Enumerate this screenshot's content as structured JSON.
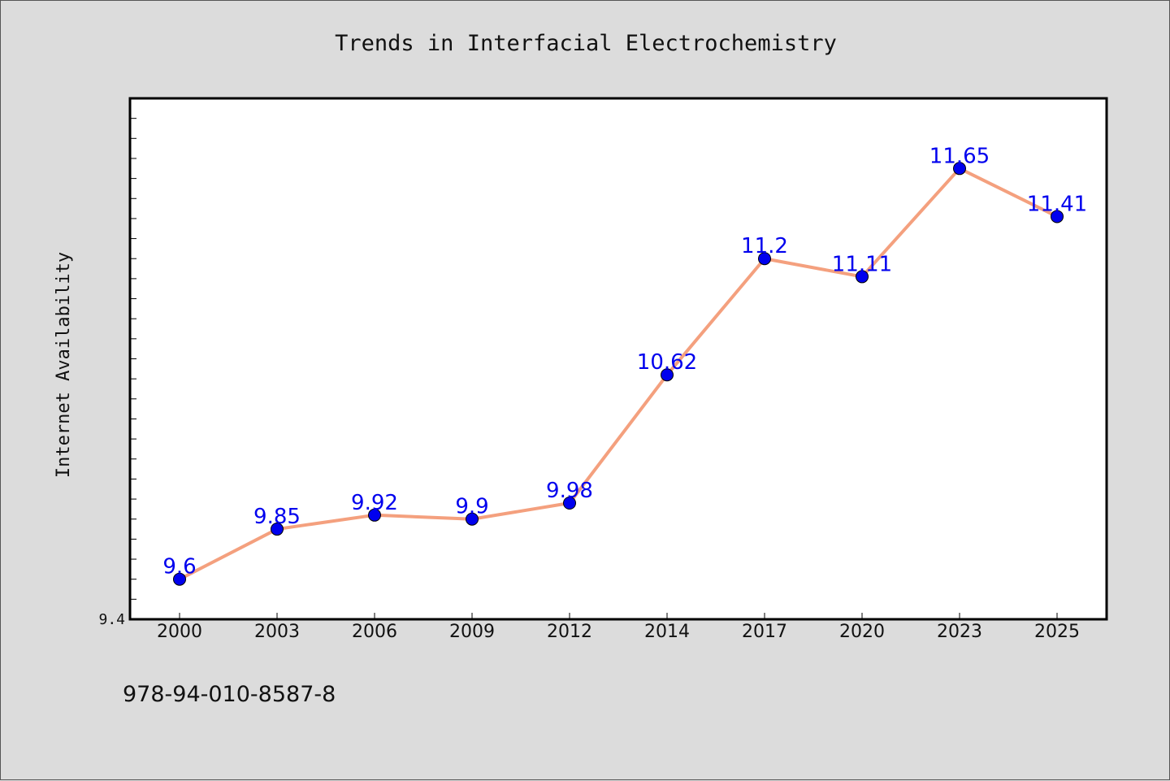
{
  "chart_data": {
    "type": "line",
    "title": "Trends in Interfacial Electrochemistry",
    "xlabel": "",
    "ylabel": "Internet Availability",
    "categories": [
      "2000",
      "2003",
      "2006",
      "2009",
      "2012",
      "2014",
      "2017",
      "2020",
      "2023",
      "2025"
    ],
    "series": [
      {
        "values": [
          9.6,
          9.85,
          9.92,
          9.9,
          9.98,
          10.62,
          11.2,
          11.11,
          11.65,
          11.41
        ],
        "labels": [
          "9.6",
          "9.85",
          "9.92",
          "9.9",
          "9.98",
          "10.62",
          "11.2",
          "11.11",
          "11.65",
          "11.41"
        ],
        "line_color": "#f4a07e",
        "marker_color": "#0000ee",
        "label_color": "#0000ee"
      }
    ],
    "ylim": [
      9.4,
      12.0
    ],
    "y_tick_labels": [
      "9.4"
    ],
    "grid": false,
    "plot_background": "#ffffff",
    "figure_background": "#dcdcdc"
  },
  "footer": {
    "isbn": "978-94-010-8587-8"
  }
}
